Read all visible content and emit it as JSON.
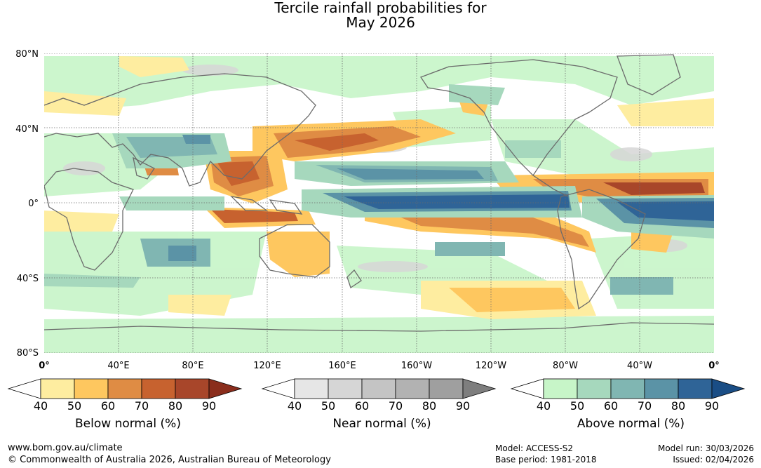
{
  "title": {
    "line1": "Tercile rainfall probabilities for",
    "line2": "May 2026"
  },
  "map": {
    "lat_labels": [
      "80°N",
      "40°N",
      "0°",
      "40°S",
      "80°S"
    ],
    "lon_labels": [
      "0°",
      "40°E",
      "80°E",
      "120°E",
      "160°E",
      "160°W",
      "120°W",
      "80°W",
      "40°W",
      "0°"
    ],
    "colors": {
      "ocean": "#ffffff",
      "coast": "#6b6b6b",
      "grid": "#6b6b6b"
    }
  },
  "legends": [
    {
      "title": "Below normal (%)",
      "ticks": [
        "40",
        "50",
        "60",
        "70",
        "80",
        "90"
      ],
      "colors": [
        "#ffffff",
        "#feeda0",
        "#fec75f",
        "#df8c44",
        "#c7622f",
        "#a8462a",
        "#8a2d1c"
      ]
    },
    {
      "title": "Near normal (%)",
      "ticks": [
        "40",
        "50",
        "60",
        "70",
        "80",
        "90"
      ],
      "colors": [
        "#ffffff",
        "#e6e6e6",
        "#d6d6d6",
        "#c4c4c4",
        "#b2b2b2",
        "#9f9f9f",
        "#7e7e7e"
      ]
    },
    {
      "title": "Above normal (%)",
      "ticks": [
        "40",
        "50",
        "60",
        "70",
        "80",
        "90"
      ],
      "colors": [
        "#ffffff",
        "#c7f5c8",
        "#a6d8bd",
        "#80b6b2",
        "#5b93a6",
        "#2f6497",
        "#1a4d85"
      ]
    }
  ],
  "footer": {
    "website": "www.bom.gov.au/climate",
    "copyright": "© Commonwealth of Australia 2026, Australian Bureau of Meteorology",
    "model": "Model: ACCESS-S2",
    "base_period": "Base period: 1981-2018",
    "model_run": "Model run: 30/03/2026",
    "issued": "Issued: 02/04/2026"
  }
}
